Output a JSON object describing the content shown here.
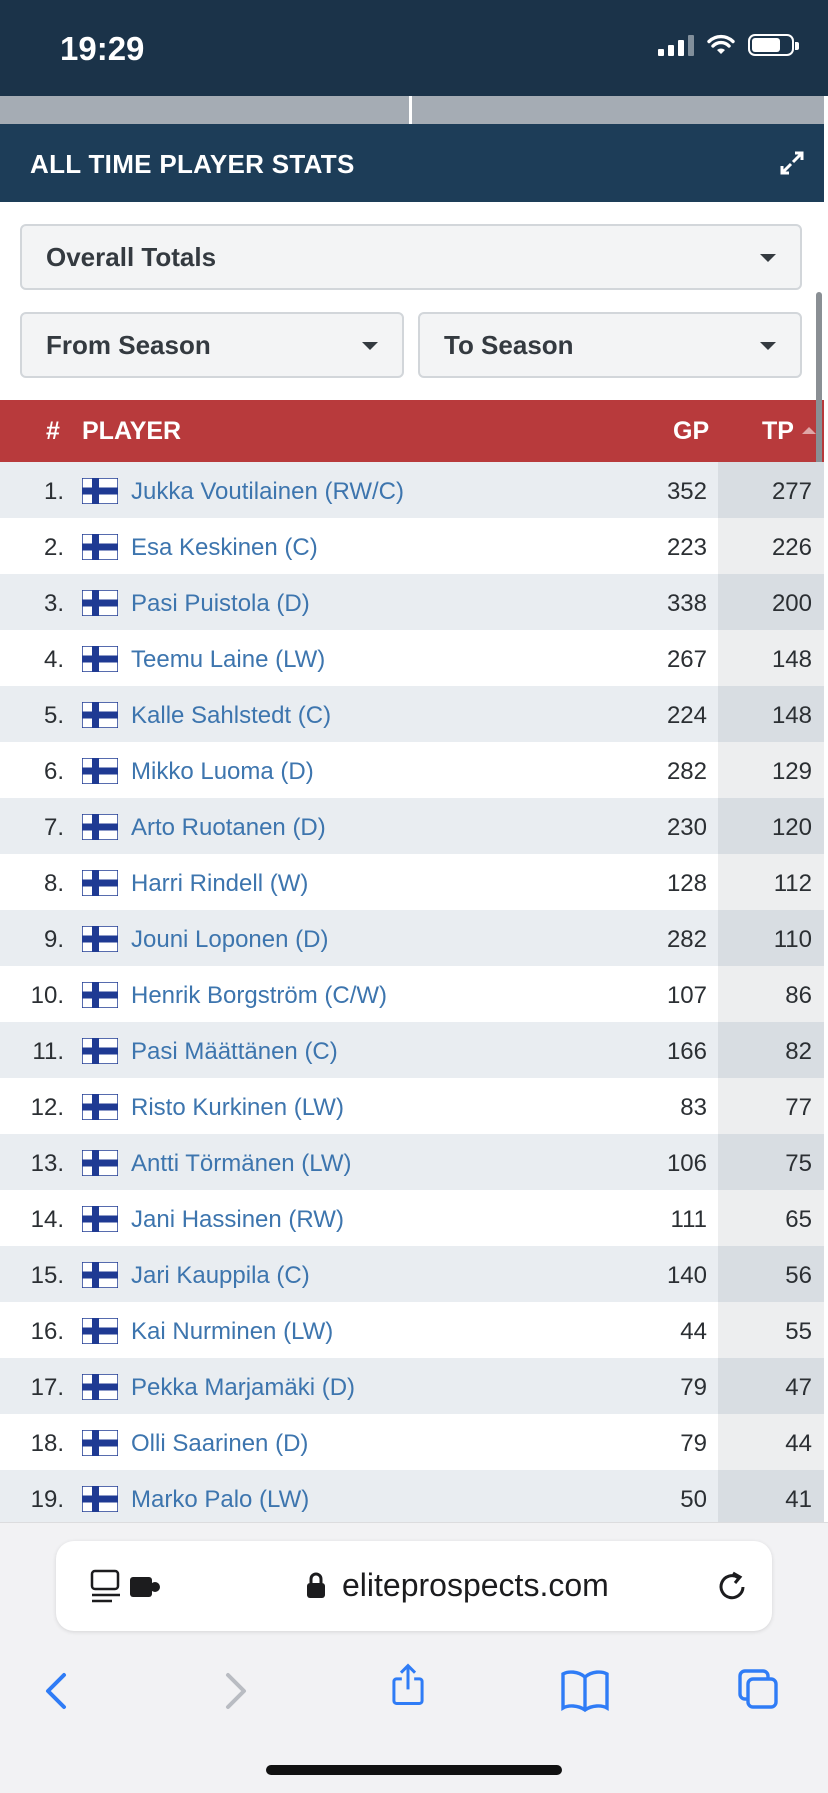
{
  "status_bar": {
    "time": "19:29"
  },
  "stats": {
    "title": "ALL TIME PLAYER STATS",
    "select_overall": "Overall Totals",
    "select_from": "From Season",
    "select_to": "To Season"
  },
  "table": {
    "headers": {
      "num": "#",
      "player": "PLAYER",
      "gp": "GP",
      "tp": "TP"
    },
    "rows": [
      {
        "rank": "1.",
        "name": "Jukka Voutilainen (RW/C)",
        "gp": "352",
        "tp": "277"
      },
      {
        "rank": "2.",
        "name": "Esa Keskinen (C)",
        "gp": "223",
        "tp": "226"
      },
      {
        "rank": "3.",
        "name": "Pasi Puistola (D)",
        "gp": "338",
        "tp": "200"
      },
      {
        "rank": "4.",
        "name": "Teemu Laine (LW)",
        "gp": "267",
        "tp": "148"
      },
      {
        "rank": "5.",
        "name": "Kalle Sahlstedt (C)",
        "gp": "224",
        "tp": "148"
      },
      {
        "rank": "6.",
        "name": "Mikko Luoma (D)",
        "gp": "282",
        "tp": "129"
      },
      {
        "rank": "7.",
        "name": "Arto Ruotanen (D)",
        "gp": "230",
        "tp": "120"
      },
      {
        "rank": "8.",
        "name": "Harri Rindell (W)",
        "gp": "128",
        "tp": "112"
      },
      {
        "rank": "9.",
        "name": "Jouni Loponen (D)",
        "gp": "282",
        "tp": "110"
      },
      {
        "rank": "10.",
        "name": "Henrik Borgström (C/W)",
        "gp": "107",
        "tp": "86"
      },
      {
        "rank": "11.",
        "name": "Pasi Määttänen (C)",
        "gp": "166",
        "tp": "82"
      },
      {
        "rank": "12.",
        "name": "Risto Kurkinen (LW)",
        "gp": "83",
        "tp": "77"
      },
      {
        "rank": "13.",
        "name": "Antti Törmänen (LW)",
        "gp": "106",
        "tp": "75"
      },
      {
        "rank": "14.",
        "name": "Jani Hassinen (RW)",
        "gp": "111",
        "tp": "65"
      },
      {
        "rank": "15.",
        "name": "Jari Kauppila (C)",
        "gp": "140",
        "tp": "56"
      },
      {
        "rank": "16.",
        "name": "Kai Nurminen (LW)",
        "gp": "44",
        "tp": "55"
      },
      {
        "rank": "17.",
        "name": "Pekka Marjamäki (D)",
        "gp": "79",
        "tp": "47"
      },
      {
        "rank": "18.",
        "name": "Olli Saarinen (D)",
        "gp": "79",
        "tp": "44"
      },
      {
        "rank": "19.",
        "name": "Marko Palo (LW)",
        "gp": "50",
        "tp": "41"
      }
    ]
  },
  "browser": {
    "url": "eliteprospects.com"
  },
  "icons": {
    "flag": "finland-flag-icon",
    "expand": "expand-icon",
    "lock": "lock-icon"
  },
  "colors": {
    "header_bg": "#1d3d58",
    "table_header_bg": "#b83a3c",
    "link": "#3d75ae"
  }
}
